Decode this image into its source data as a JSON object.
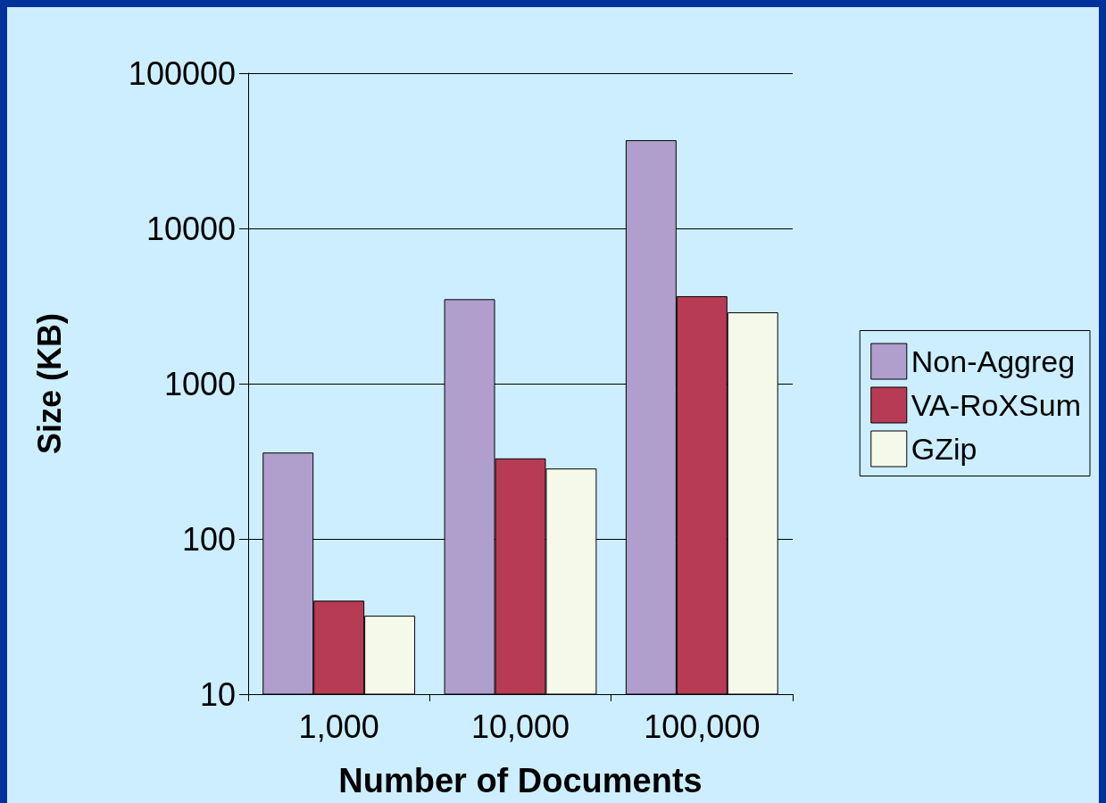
{
  "chart_data": {
    "type": "bar",
    "xlabel": "Number of Documents",
    "ylabel": "Size (KB)",
    "categories": [
      "1,000",
      "10,000",
      "100,000"
    ],
    "series": [
      {
        "name": "Non-Aggreg",
        "color": "#b09fcc",
        "values": [
          360,
          3500,
          37000
        ]
      },
      {
        "name": "VA-RoXSum",
        "color": "#b83b55",
        "values": [
          40,
          330,
          3660
        ]
      },
      {
        "name": "GZip",
        "color": "#f4f9ea",
        "values": [
          32,
          284,
          2880
        ]
      }
    ],
    "log": "y",
    "ylim": [
      10,
      100000
    ],
    "yticks": [
      10,
      100,
      1000,
      10000,
      100000
    ],
    "grid": "y",
    "legend": "right"
  }
}
